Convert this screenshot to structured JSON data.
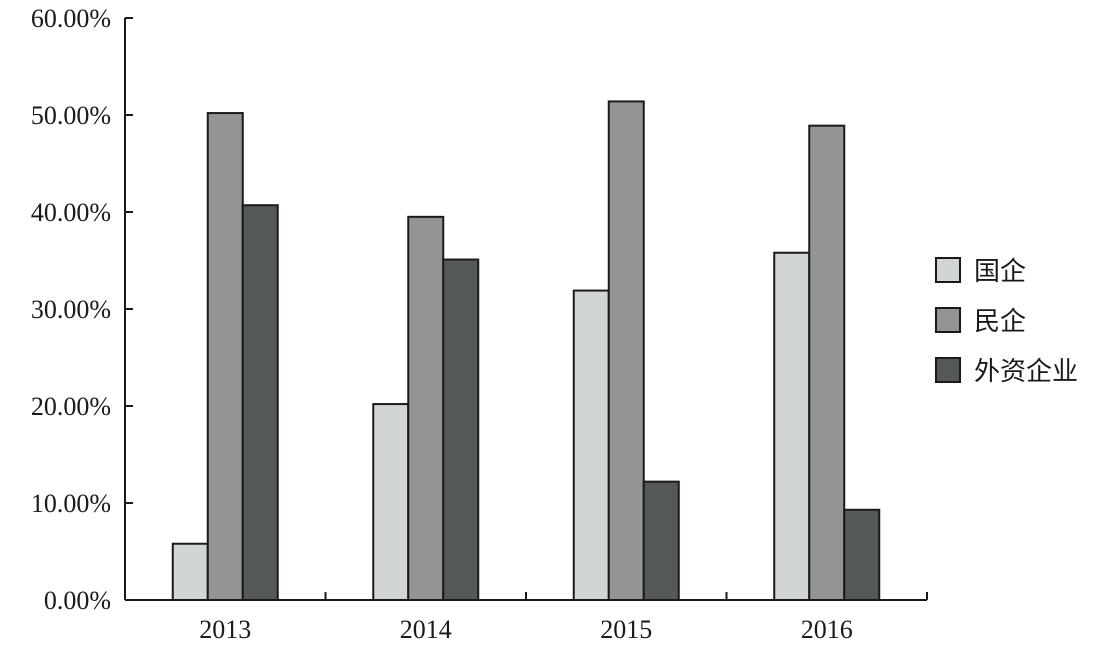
{
  "chart_data": {
    "type": "bar",
    "categories": [
      "2013",
      "2014",
      "2015",
      "2016"
    ],
    "series": [
      {
        "name": "国企",
        "color": "#d2d5d6",
        "values": [
          5.8,
          20.2,
          31.9,
          35.8
        ]
      },
      {
        "name": "民企",
        "color": "#939496",
        "values": [
          50.2,
          39.5,
          51.4,
          48.9
        ]
      },
      {
        "name": "外资企业",
        "color": "#555859",
        "values": [
          40.7,
          35.1,
          12.2,
          9.3
        ]
      }
    ],
    "ylim": [
      0,
      60
    ],
    "yticks": [
      0,
      10,
      20,
      30,
      40,
      50,
      60
    ],
    "ytick_labels": [
      "0.00%",
      "10.00%",
      "20.00%",
      "30.00%",
      "40.00%",
      "50.00%",
      "60.00%"
    ],
    "grid": false,
    "legend_position": "right"
  }
}
